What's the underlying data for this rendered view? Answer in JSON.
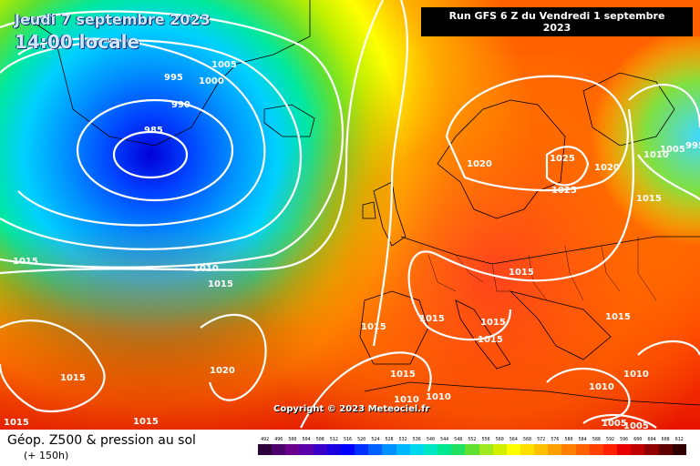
{
  "header": {
    "date_line": "Jeudi 7 septembre 2023",
    "time_line": "14:00 locale",
    "run_info": "Run GFS 6 Z du Vendredi 1 septembre 2023"
  },
  "copyright": "Copyright © 2023 Meteociel.fr",
  "legend": {
    "title": "Géop. Z500 & pression au sol",
    "subtitle": "(+ 150h)",
    "scale_values": [
      "492",
      "496",
      "500",
      "504",
      "508",
      "512",
      "516",
      "520",
      "524",
      "528",
      "532",
      "536",
      "540",
      "544",
      "548",
      "552",
      "556",
      "560",
      "564",
      "568",
      "572",
      "576",
      "580",
      "584",
      "588",
      "592",
      "596",
      "600",
      "604",
      "608",
      "612"
    ],
    "scale_colors": [
      "#2b003b",
      "#4b006b",
      "#6a008c",
      "#5a00aa",
      "#3a00c8",
      "#1a00e0",
      "#0000ff",
      "#0030ff",
      "#0060ff",
      "#0090ff",
      "#00b8ff",
      "#00d8f0",
      "#00e8c0",
      "#00e890",
      "#20e060",
      "#60e030",
      "#a0e820",
      "#d0f000",
      "#ffff00",
      "#ffe000",
      "#ffc000",
      "#ffa000",
      "#ff8000",
      "#ff6000",
      "#ff4000",
      "#ff2000",
      "#e80000",
      "#c00000",
      "#900000",
      "#600000",
      "#300000"
    ]
  },
  "isobar_labels": [
    "1005",
    "1000",
    "995",
    "990",
    "985",
    "1020",
    "1025",
    "1025",
    "1020",
    "1010",
    "1005",
    "995",
    "1015",
    "1015",
    "1010",
    "1015",
    "1015",
    "1015",
    "1015",
    "1015",
    "1015",
    "1015",
    "1015",
    "1020",
    "1015",
    "1015",
    "1010",
    "1010",
    "1010",
    "1010",
    "1005",
    "1005",
    "1015"
  ]
}
